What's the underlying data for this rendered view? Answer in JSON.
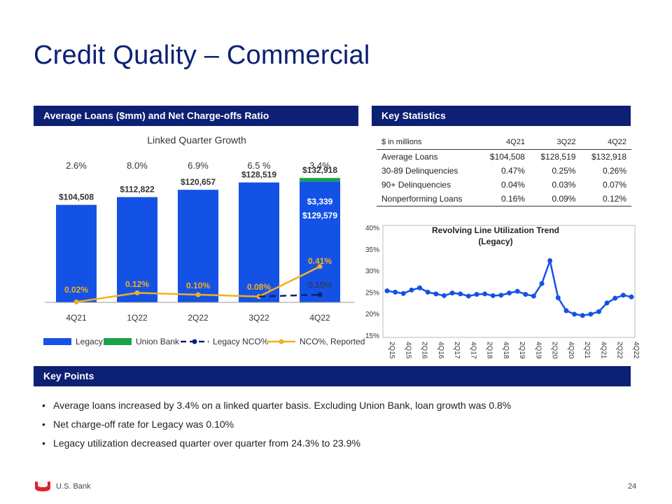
{
  "title": "Credit Quality – Commercial",
  "sections": {
    "avg_loans": "Average Loans ($mm) and Net Charge-offs Ratio",
    "key_stats": "Key Statistics",
    "key_points": "Key Points"
  },
  "colors": {
    "navy": "#0c2074",
    "legacy": "#1452e6",
    "union": "#1aa34a",
    "nco": "#f2b01e",
    "legacy_nco": "#0c2074"
  },
  "key_stats": {
    "header": [
      "$ in millions",
      "4Q21",
      "3Q22",
      "4Q22"
    ],
    "rows": [
      [
        "Average Loans",
        "$104,508",
        "$128,519",
        "$132,918"
      ],
      [
        "30-89 Delinquencies",
        "0.47%",
        "0.25%",
        "0.26%"
      ],
      [
        "90+ Delinquencies",
        "0.04%",
        "0.03%",
        "0.07%"
      ],
      [
        "Nonperforming Loans",
        "0.16%",
        "0.09%",
        "0.12%"
      ]
    ]
  },
  "key_points": [
    "Average loans increased by 3.4% on a linked quarter basis.  Excluding Union Bank, loan growth was 0.8%",
    "Net charge-off rate for Legacy was 0.10%",
    "Legacy utilization decreased quarter over quarter from 24.3% to 23.9%"
  ],
  "footer": {
    "brand": "U.S. Bank",
    "page": "24"
  },
  "chart_data": [
    {
      "type": "bar",
      "title": "Linked Quarter Growth",
      "growth_labels": [
        "2.6%",
        "8.0%",
        "6.9%",
        "6.5 %",
        "3.4%"
      ],
      "categories": [
        "4Q21",
        "1Q22",
        "2Q22",
        "3Q22",
        "4Q22"
      ],
      "series": [
        {
          "name": "Legacy",
          "values": [
            104508,
            112822,
            120657,
            128519,
            129579
          ]
        },
        {
          "name": "Union Bank",
          "values": [
            0,
            0,
            0,
            0,
            3339
          ]
        }
      ],
      "total_labels": [
        "$104,508",
        "$112,822",
        "$120,657",
        "$128,519",
        "$132,918"
      ],
      "segment_labels": {
        "legacy": "$129,579",
        "union": "$3,339"
      },
      "lines": [
        {
          "name": "Legacy NCO%",
          "values": [
            null,
            null,
            null,
            0.08,
            0.1
          ],
          "style": "dashed"
        },
        {
          "name": "NCO%, Reported",
          "values": [
            0.02,
            0.12,
            0.1,
            0.08,
            0.41
          ],
          "labels": [
            "0.02%",
            "0.12%",
            "0.10%",
            "0.08%",
            "0.41%"
          ]
        }
      ],
      "legacy_nco_label": "0.10%",
      "legend": [
        "Legacy",
        "Union Bank",
        "Legacy NCO%",
        "NCO%, Reported"
      ],
      "ylim": [
        0,
        150000
      ]
    },
    {
      "type": "line",
      "title": "Revolving Line Utilization Trend",
      "subtitle": "(Legacy)",
      "x": [
        "2Q15",
        "3Q15",
        "4Q15",
        "1Q16",
        "2Q16",
        "3Q16",
        "4Q16",
        "1Q17",
        "2Q17",
        "3Q17",
        "4Q17",
        "1Q18",
        "2Q18",
        "3Q18",
        "4Q18",
        "1Q19",
        "2Q19",
        "3Q19",
        "4Q19",
        "1Q20",
        "2Q20",
        "3Q20",
        "4Q20",
        "1Q21",
        "2Q21",
        "3Q21",
        "4Q21",
        "1Q22",
        "2Q22",
        "3Q22",
        "4Q22"
      ],
      "x_tick_labels": [
        "2Q15",
        "4Q15",
        "2Q16",
        "4Q16",
        "2Q17",
        "4Q17",
        "2Q18",
        "4Q18",
        "2Q19",
        "4Q19",
        "2Q20",
        "4Q20",
        "2Q21",
        "4Q21",
        "2Q22",
        "4Q22"
      ],
      "values": [
        25.3,
        25.0,
        24.7,
        25.5,
        26.0,
        25.0,
        24.6,
        24.2,
        24.8,
        24.6,
        24.1,
        24.5,
        24.6,
        24.2,
        24.3,
        24.8,
        25.2,
        24.5,
        24.1,
        27.0,
        32.3,
        23.7,
        20.7,
        19.9,
        19.6,
        19.9,
        20.5,
        22.5,
        23.6,
        24.3,
        23.9
      ],
      "y_ticks": [
        "40%",
        "35%",
        "30%",
        "25%",
        "20%",
        "15%"
      ],
      "ylim": [
        15,
        40
      ]
    }
  ]
}
